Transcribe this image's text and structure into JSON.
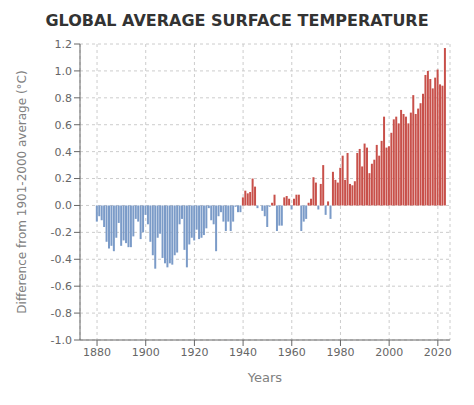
{
  "chart_data": {
    "type": "bar",
    "title": "GLOBAL AVERAGE SURFACE TEMPERATURE",
    "xlabel": "Years",
    "ylabel": "Difference from 1901-2000 average (°C)",
    "x": [
      1880,
      1881,
      1882,
      1883,
      1884,
      1885,
      1886,
      1887,
      1888,
      1889,
      1890,
      1891,
      1892,
      1893,
      1894,
      1895,
      1896,
      1897,
      1898,
      1899,
      1900,
      1901,
      1902,
      1903,
      1904,
      1905,
      1906,
      1907,
      1908,
      1909,
      1910,
      1911,
      1912,
      1913,
      1914,
      1915,
      1916,
      1917,
      1918,
      1919,
      1920,
      1921,
      1922,
      1923,
      1924,
      1925,
      1926,
      1927,
      1928,
      1929,
      1930,
      1931,
      1932,
      1933,
      1934,
      1935,
      1936,
      1937,
      1938,
      1939,
      1940,
      1941,
      1942,
      1943,
      1944,
      1945,
      1946,
      1947,
      1948,
      1949,
      1950,
      1951,
      1952,
      1953,
      1954,
      1955,
      1956,
      1957,
      1958,
      1959,
      1960,
      1961,
      1962,
      1963,
      1964,
      1965,
      1966,
      1967,
      1968,
      1969,
      1970,
      1971,
      1972,
      1973,
      1974,
      1975,
      1976,
      1977,
      1978,
      1979,
      1980,
      1981,
      1982,
      1983,
      1984,
      1985,
      1986,
      1987,
      1988,
      1989,
      1990,
      1991,
      1992,
      1993,
      1994,
      1995,
      1996,
      1997,
      1998,
      1999,
      2000,
      2001,
      2002,
      2003,
      2004,
      2005,
      2006,
      2007,
      2008,
      2009,
      2010,
      2011,
      2012,
      2013,
      2014,
      2015,
      2016,
      2017,
      2018,
      2019,
      2020,
      2021,
      2022,
      2023
    ],
    "values": [
      -0.12,
      -0.08,
      -0.11,
      -0.16,
      -0.27,
      -0.32,
      -0.3,
      -0.34,
      -0.24,
      -0.13,
      -0.3,
      -0.26,
      -0.28,
      -0.31,
      -0.31,
      -0.23,
      -0.1,
      -0.12,
      -0.25,
      -0.2,
      -0.07,
      -0.14,
      -0.27,
      -0.37,
      -0.47,
      -0.24,
      -0.21,
      -0.39,
      -0.43,
      -0.46,
      -0.43,
      -0.44,
      -0.37,
      -0.35,
      -0.14,
      -0.1,
      -0.33,
      -0.46,
      -0.29,
      -0.24,
      -0.26,
      -0.18,
      -0.25,
      -0.24,
      -0.22,
      -0.17,
      -0.02,
      -0.11,
      -0.14,
      -0.34,
      -0.08,
      -0.05,
      -0.12,
      -0.19,
      -0.12,
      -0.19,
      -0.12,
      -0.01,
      -0.05,
      -0.05,
      0.06,
      0.11,
      0.09,
      0.1,
      0.2,
      0.14,
      -0.02,
      0.0,
      -0.04,
      -0.08,
      -0.16,
      -0.01,
      0.02,
      0.08,
      -0.19,
      -0.15,
      -0.15,
      0.06,
      0.07,
      0.05,
      -0.03,
      0.05,
      0.08,
      0.08,
      -0.19,
      -0.12,
      -0.1,
      0.02,
      0.05,
      0.21,
      0.17,
      -0.03,
      0.16,
      0.3,
      -0.07,
      0.03,
      -0.1,
      0.25,
      0.19,
      0.17,
      0.28,
      0.37,
      0.19,
      0.39,
      0.16,
      0.15,
      0.18,
      0.39,
      0.42,
      0.29,
      0.46,
      0.43,
      0.24,
      0.31,
      0.34,
      0.45,
      0.37,
      0.48,
      0.66,
      0.43,
      0.44,
      0.54,
      0.64,
      0.66,
      0.61,
      0.71,
      0.68,
      0.66,
      0.61,
      0.69,
      0.82,
      0.68,
      0.72,
      0.76,
      0.83,
      0.97,
      1.0,
      0.94,
      0.87,
      0.95,
      1.01,
      0.9,
      0.89,
      1.17
    ],
    "colors": [
      "#7B9BC8",
      "#7B9BC8",
      "#7B9BC8",
      "#7B9BC8",
      "#7B9BC8",
      "#7B9BC8",
      "#7B9BC8",
      "#7B9BC8",
      "#7B9BC8",
      "#7B9BC8",
      "#7B9BC8",
      "#7B9BC8",
      "#7B9BC8",
      "#7B9BC8",
      "#7B9BC8",
      "#7B9BC8",
      "#7B9BC8",
      "#7B9BC8",
      "#7B9BC8",
      "#7B9BC8",
      "#7B9BC8",
      "#7B9BC8",
      "#7B9BC8",
      "#7B9BC8",
      "#7B9BC8",
      "#7B9BC8",
      "#7B9BC8",
      "#7B9BC8",
      "#7B9BC8",
      "#7B9BC8",
      "#7B9BC8",
      "#7B9BC8",
      "#7B9BC8",
      "#7B9BC8",
      "#7B9BC8",
      "#7B9BC8",
      "#7B9BC8",
      "#7B9BC8",
      "#7B9BC8",
      "#7B9BC8",
      "#7B9BC8",
      "#7B9BC8",
      "#7B9BC8",
      "#7B9BC8",
      "#7B9BC8",
      "#7B9BC8",
      "#7B9BC8",
      "#7B9BC8",
      "#7B9BC8",
      "#7B9BC8",
      "#7B9BC8",
      "#7B9BC8",
      "#7B9BC8",
      "#7B9BC8",
      "#7B9BC8",
      "#7B9BC8",
      "#7B9BC8",
      "#7B9BC8",
      "#7B9BC8",
      "#7B9BC8",
      "#C8504A",
      "#C8504A",
      "#C8504A",
      "#C8504A",
      "#C8504A",
      "#C8504A",
      "#7B9BC8",
      "#C8504A",
      "#7B9BC8",
      "#7B9BC8",
      "#7B9BC8",
      "#7B9BC8",
      "#C8504A",
      "#C8504A",
      "#7B9BC8",
      "#7B9BC8",
      "#7B9BC8",
      "#C8504A",
      "#C8504A",
      "#C8504A",
      "#7B9BC8",
      "#C8504A",
      "#C8504A",
      "#C8504A",
      "#7B9BC8",
      "#7B9BC8",
      "#7B9BC8",
      "#C8504A",
      "#C8504A",
      "#C8504A",
      "#C8504A",
      "#7B9BC8",
      "#C8504A",
      "#C8504A",
      "#7B9BC8",
      "#C8504A",
      "#7B9BC8",
      "#C8504A",
      "#C8504A",
      "#C8504A",
      "#C8504A",
      "#C8504A",
      "#C8504A",
      "#C8504A",
      "#C8504A",
      "#C8504A",
      "#C8504A",
      "#C8504A",
      "#C8504A",
      "#C8504A",
      "#C8504A",
      "#C8504A",
      "#C8504A",
      "#C8504A",
      "#C8504A",
      "#C8504A",
      "#C8504A",
      "#C8504A",
      "#C8504A",
      "#C8504A",
      "#C8504A",
      "#C8504A",
      "#C8504A",
      "#C8504A",
      "#C8504A",
      "#C8504A",
      "#C8504A",
      "#C8504A",
      "#C8504A",
      "#C8504A",
      "#C8504A",
      "#C8504A",
      "#C8504A",
      "#C8504A",
      "#C8504A",
      "#C8504A",
      "#C8504A",
      "#C8504A",
      "#C8504A",
      "#C8504A",
      "#C8504A",
      "#C8504A",
      "#C8504A",
      "#C8504A"
    ],
    "xlim": [
      1873,
      2025
    ],
    "ylim": [
      -1.0,
      1.2
    ],
    "xticks": [
      1880,
      1900,
      1920,
      1940,
      1960,
      1980,
      2000,
      2020
    ],
    "yticks": [
      {
        "value": -1.0,
        "label": "-1.0"
      },
      -0.8,
      -0.6,
      -0.4,
      -0.2,
      {
        "value": 0.0,
        "label": "0.0"
      },
      0.2,
      0.4,
      0.6,
      0.8,
      {
        "value": 1.0,
        "label": "1.0"
      },
      1.2
    ],
    "grid": true
  }
}
